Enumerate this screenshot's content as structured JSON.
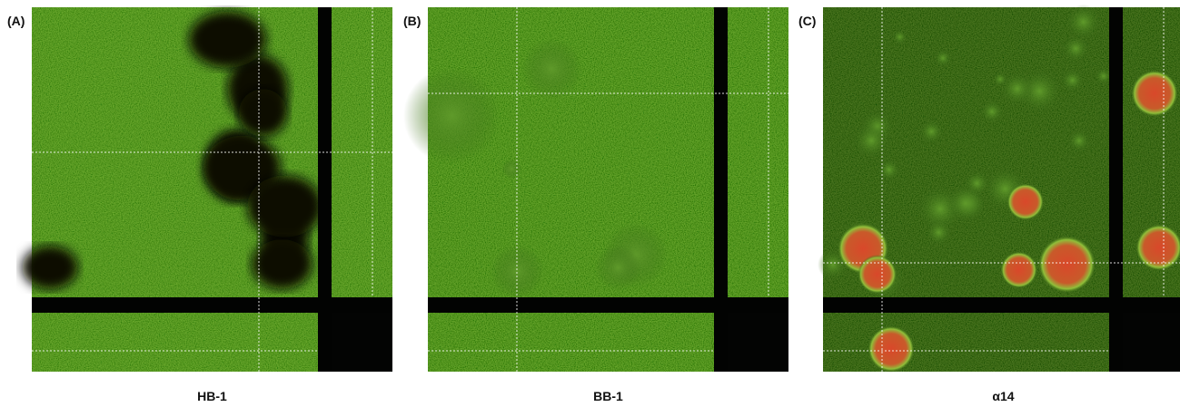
{
  "panels": [
    {
      "label": "(A)",
      "caption": "HB-1"
    },
    {
      "label": "(B)",
      "caption": "BB-1"
    },
    {
      "label": "(C)",
      "caption": "α14"
    }
  ]
}
